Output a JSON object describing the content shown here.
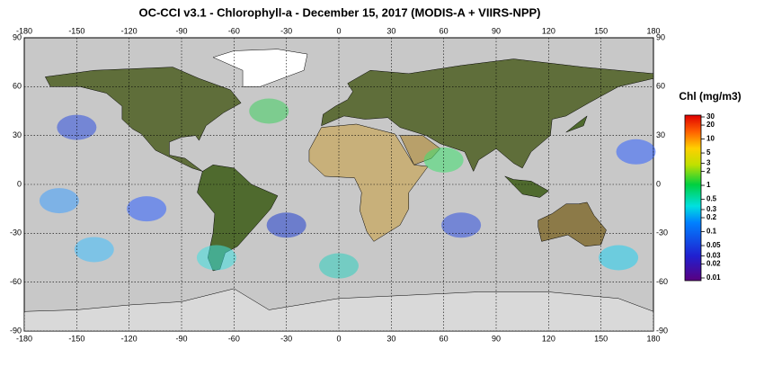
{
  "map": {
    "title": "OC-CCI v3.1 - Chlorophyll-a - December 15, 2017 (MODIS-A + VIIRS-NPP)",
    "lon_range": [
      -180,
      180
    ],
    "lat_range": [
      -90,
      90
    ],
    "lon_ticks": [
      -180,
      -150,
      -120,
      -90,
      -60,
      -30,
      0,
      30,
      60,
      90,
      120,
      150,
      180
    ],
    "lat_ticks": [
      -90,
      -60,
      -30,
      0,
      30,
      60,
      90
    ],
    "colorbar": {
      "label": "Chl (mg/m3)",
      "range": [
        0.01,
        30
      ],
      "log": true,
      "ticks": [
        30,
        20,
        10,
        5,
        3,
        2,
        1,
        0.5,
        0.3,
        0.2,
        0.1,
        0.05,
        0.03,
        0.02,
        0.01
      ]
    }
  }
}
